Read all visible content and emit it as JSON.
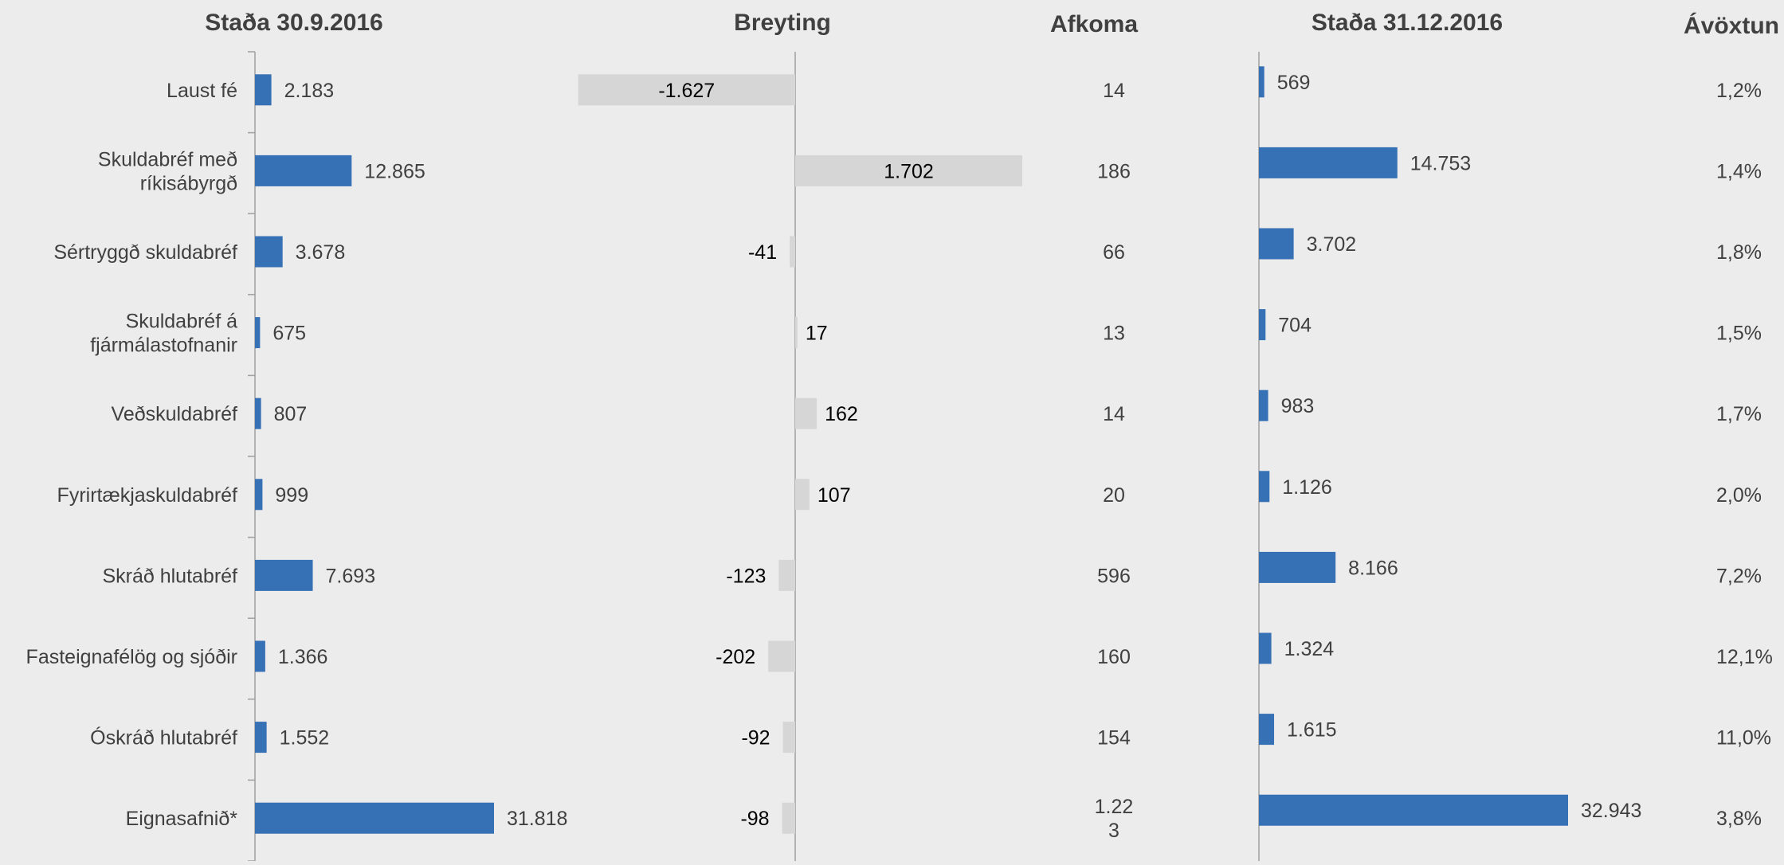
{
  "headers": {
    "start": "Staða 30.9.2016",
    "change": "Breyting",
    "return_amount": "Afkoma",
    "end": "Staða 31.12.2016",
    "yield": "Ávöxtun"
  },
  "colors": {
    "background": "#ececec",
    "blue_bar": "#3670b5",
    "grey_bar": "#d6d6d6",
    "axis": "#a0a0a0",
    "text": "#404040"
  },
  "chart_data": {
    "type": "bar",
    "orientation": "horizontal",
    "categories": [
      [
        "Laust fé"
      ],
      [
        "Skuldabréf með",
        "ríkisábyrgð"
      ],
      [
        "Sértryggð skuldabréf"
      ],
      [
        "Skuldabréf á",
        "fjármálastofnanir"
      ],
      [
        "Veðskuldabréf"
      ],
      [
        "Fyrirtækjaskuldabréf"
      ],
      [
        "Skráð hlutabréf"
      ],
      [
        "Fasteignafélög og sjóðir"
      ],
      [
        "Óskráð hlutabréf"
      ],
      [
        "Eignasafnið*"
      ]
    ],
    "series": [
      {
        "name": "Staða 30.9.2016",
        "values": [
          2183,
          12865,
          3678,
          675,
          807,
          999,
          7693,
          1366,
          1552,
          31818
        ],
        "labels": [
          "2.183",
          "12.865",
          "3.678",
          "675",
          "807",
          "999",
          "7.693",
          "1.366",
          "1.552",
          "31.818"
        ]
      },
      {
        "name": "Breyting",
        "values": [
          -1627,
          1702,
          -41,
          17,
          162,
          107,
          -123,
          -202,
          -92,
          -98
        ],
        "labels": [
          "-1.627",
          "1.702",
          "-41",
          "17",
          "162",
          "107",
          "-123",
          "-202",
          "-92",
          "-98"
        ]
      },
      {
        "name": "Afkoma",
        "values": [
          14,
          186,
          66,
          13,
          14,
          20,
          596,
          160,
          154,
          1223
        ],
        "labels": [
          [
            "14"
          ],
          [
            "186"
          ],
          [
            "66"
          ],
          [
            "13"
          ],
          [
            "14"
          ],
          [
            "20"
          ],
          [
            "596"
          ],
          [
            "160"
          ],
          [
            "154"
          ],
          [
            "1.22",
            "3"
          ]
        ]
      },
      {
        "name": "Staða 31.12.2016",
        "values": [
          569,
          14753,
          3702,
          704,
          983,
          1126,
          8166,
          1324,
          1615,
          32943
        ],
        "labels": [
          "569",
          "14.753",
          "3.702",
          "704",
          "983",
          "1.126",
          "8.166",
          "1.324",
          "1.615",
          "32.943"
        ]
      },
      {
        "name": "Ávöxtun",
        "values": [
          1.2,
          1.4,
          1.8,
          1.5,
          1.7,
          2.0,
          7.2,
          12.1,
          11.0,
          3.8
        ],
        "labels": [
          "1,2%",
          "1,4%",
          "1,8%",
          "1,5%",
          "1,7%",
          "2,0%",
          "7,2%",
          "12,1%",
          "11,0%",
          "3,8%"
        ]
      }
    ]
  }
}
